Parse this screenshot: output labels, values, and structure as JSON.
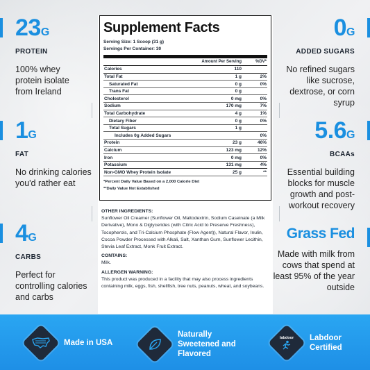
{
  "left_stats": [
    {
      "value": "23",
      "unit": "G",
      "label": "PROTEIN",
      "desc": "100% whey protein isolate from Ireland"
    },
    {
      "value": "1",
      "unit": "G",
      "label": "FAT",
      "desc": "No drinking calories you'd rather eat"
    },
    {
      "value": "4",
      "unit": "G",
      "label": "CARBS",
      "desc": "Perfect for controlling calories and carbs"
    }
  ],
  "right_stats": [
    {
      "value": "0",
      "unit": "G",
      "label": "ADDED SUGARS",
      "desc": "No refined sugars like sucrose, dextrose, or corn syrup"
    },
    {
      "value": "5.6",
      "unit": "G",
      "label": "BCAAs",
      "desc": "Essential building blocks for muscle growth and post-workout recovery"
    },
    {
      "value": "Grass Fed",
      "unit": "",
      "label": "",
      "desc": "Made with milk from cows that spend at least 95% of the year outside"
    }
  ],
  "facts": {
    "title": "Supplement Facts",
    "serving_size": "Serving Size: 1 Scoop (31 g)",
    "servings_per_container": "Servings Per Container: 30",
    "col_amount": "Amount Per Serving",
    "col_dv": "%DV*",
    "rows": [
      {
        "name": "Calories",
        "amt": "110",
        "dv": "",
        "indent": 0
      },
      {
        "name": "Total Fat",
        "amt": "1 g",
        "dv": "2%",
        "indent": 0
      },
      {
        "name": "Saturated Fat",
        "amt": "0 g",
        "dv": "0%",
        "indent": 1
      },
      {
        "name": "Trans Fat",
        "amt": "0 g",
        "dv": "",
        "indent": 1
      },
      {
        "name": "Cholesterol",
        "amt": "0 mg",
        "dv": "0%",
        "indent": 0
      },
      {
        "name": "Sodium",
        "amt": "170 mg",
        "dv": "7%",
        "indent": 0
      },
      {
        "name": "Total Carbohydrate",
        "amt": "4 g",
        "dv": "1%",
        "indent": 0
      },
      {
        "name": "Dietary Fiber",
        "amt": "0 g",
        "dv": "0%",
        "indent": 1
      },
      {
        "name": "Total Sugars",
        "amt": "1 g",
        "dv": "",
        "indent": 1
      },
      {
        "name": "Includes 0g Added Sugars",
        "amt": "",
        "dv": "0%",
        "indent": 2
      },
      {
        "name": "Protein",
        "amt": "23 g",
        "dv": "46%",
        "indent": 0
      },
      {
        "name": "Calcium",
        "amt": "123 mg",
        "dv": "12%",
        "indent": 0
      },
      {
        "name": "Iron",
        "amt": "0 mg",
        "dv": "0%",
        "indent": 0
      },
      {
        "name": "Potassium",
        "amt": "131 mg",
        "dv": "4%",
        "indent": 0
      },
      {
        "name": "Non-GMO Whey Protein Isolate",
        "amt": "25 g",
        "dv": "**",
        "indent": 0
      }
    ],
    "footnote1": "*Percent Daily Value Based on a 2,000 Calorie Diet",
    "footnote2": "**Daily Value Not Established"
  },
  "ingredients": {
    "other_heading": "OTHER INGREDIENTS:",
    "other_text": "Sunflower Oil Creamer (Sunflower Oil, Maltodextrin, Sodium Caseinate (a Milk Derivative), Mono & Diglycerides (with Citric Acid to Preserve Freshness), Tocopherols, and Tri-Calcium Phosphate (Flow Agent)), Natural Flavor, Inulin, Cocoa Powder Processed with Alkali, Salt, Xanthan Gum, Sunflower Lecithin, Stevia Leaf Extract, Monk Fruit Extract.",
    "contains_heading": "CONTAINS:",
    "contains_text": "Milk.",
    "allergen_heading": "ALLERGEN WARNING:",
    "allergen_text": "This product was produced in a facility that may also process ingredients containing milk, eggs, fish, shellfish, tree nuts, peanuts, wheat, and soybeans."
  },
  "band": {
    "items": [
      {
        "text": "Made in USA",
        "icon": "usa-map-icon"
      },
      {
        "text": "Naturally Sweetened and Flavored",
        "icon": "leaf-icon"
      },
      {
        "text": "Labdoor Certified",
        "icon": "labdoor-badge-icon",
        "badge_text": "labdoor"
      }
    ]
  },
  "colors": {
    "accent": "#1a8fe0",
    "band": "#2aa6f2",
    "badge": "#1f2a3a"
  }
}
